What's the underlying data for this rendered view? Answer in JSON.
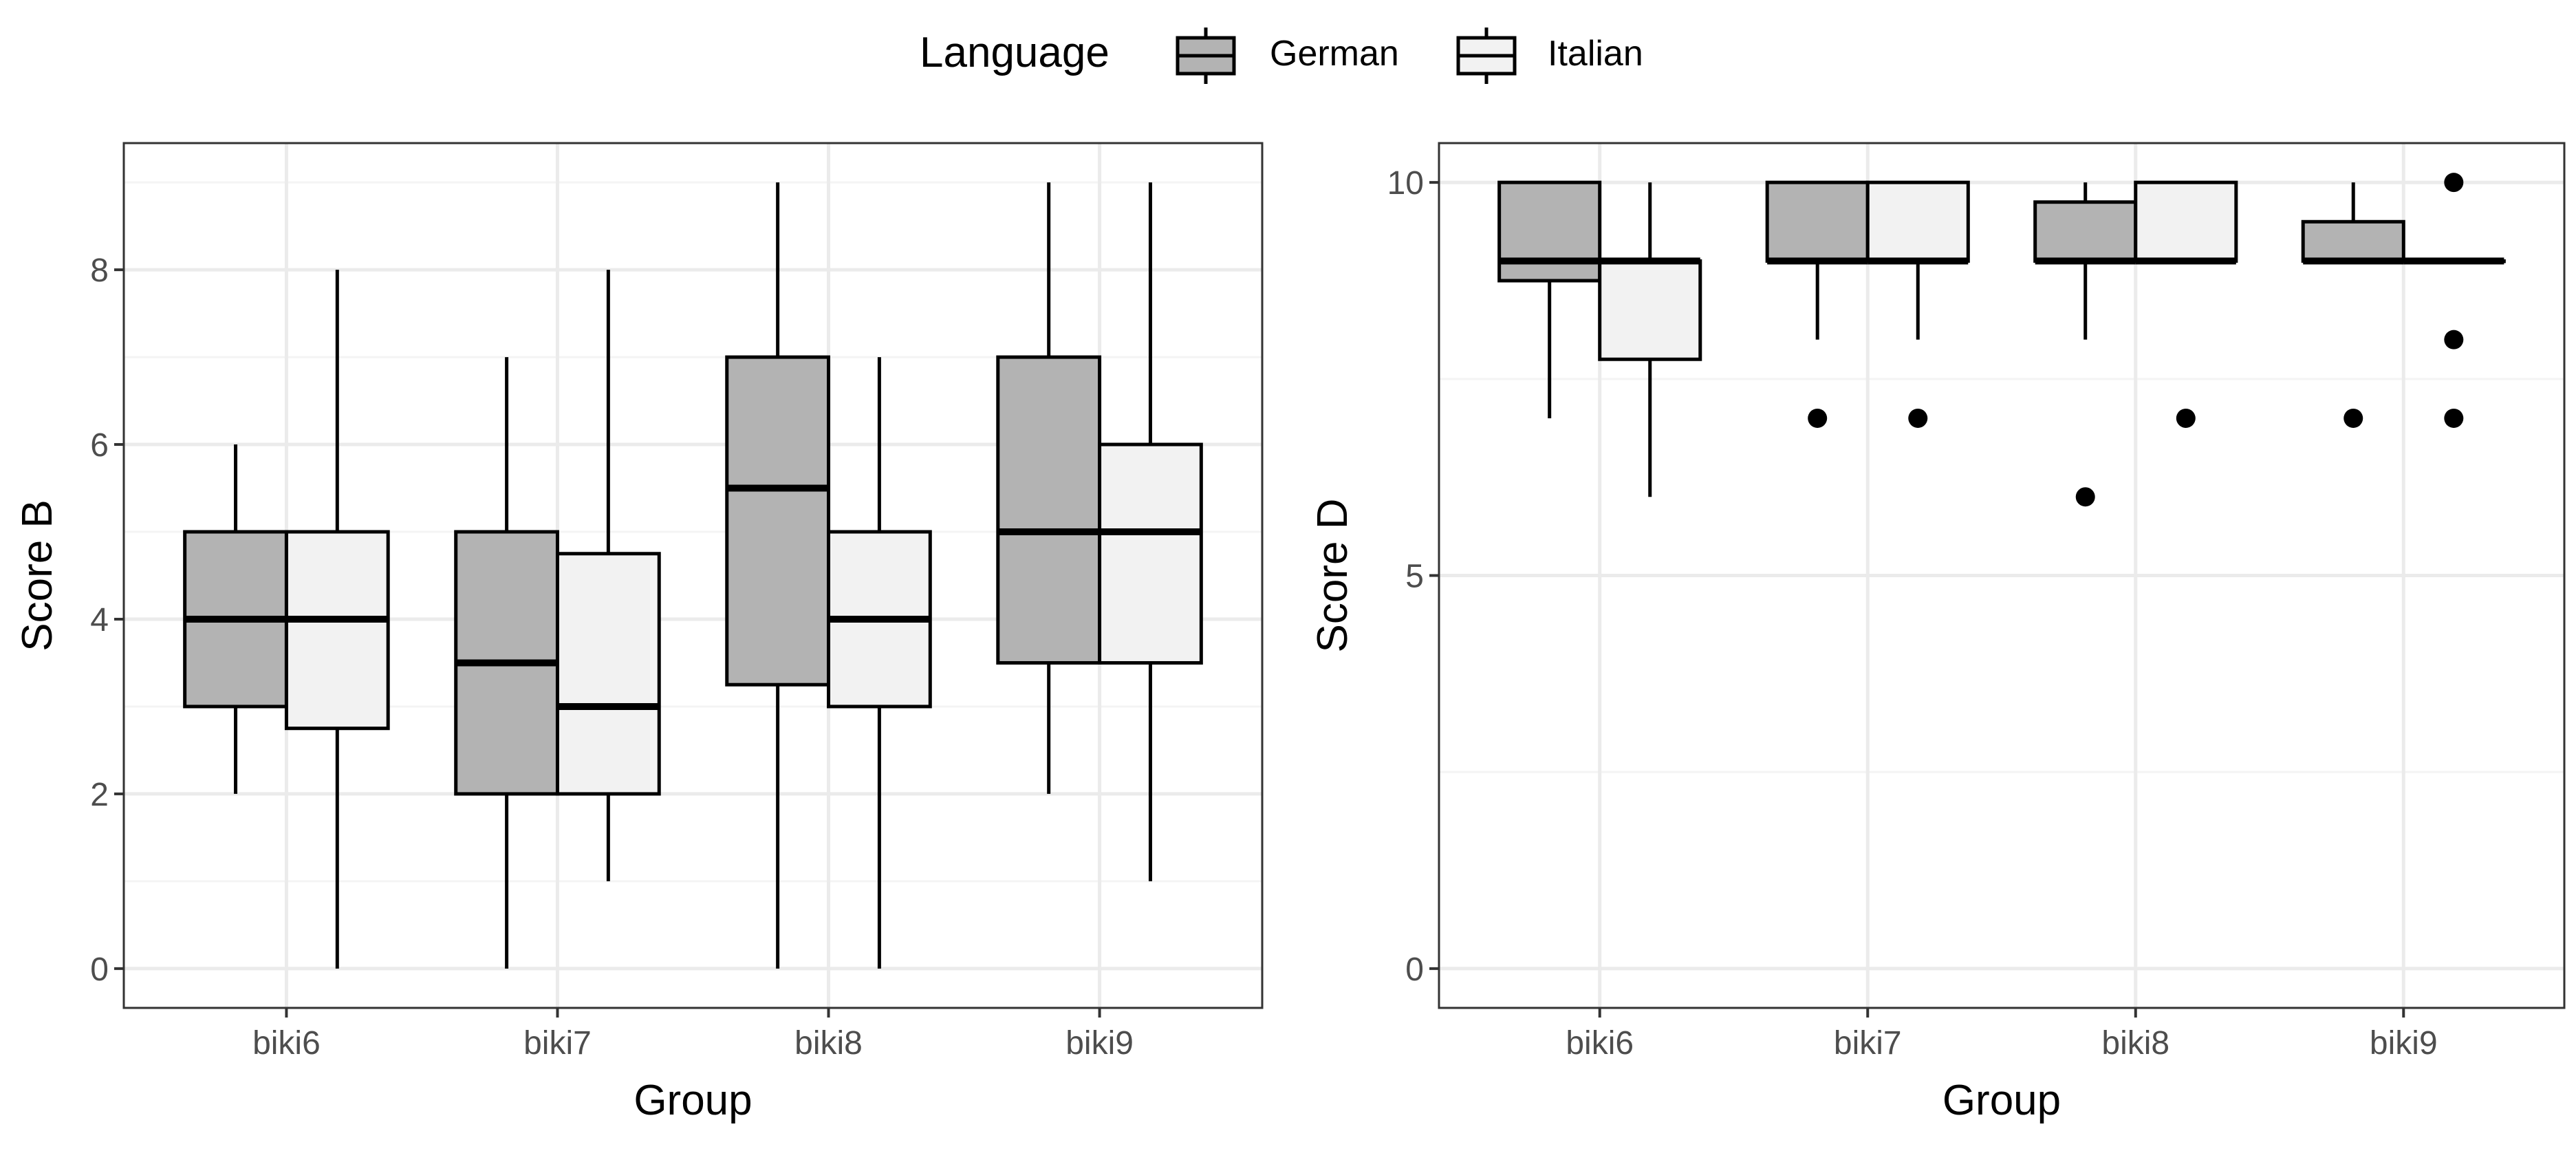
{
  "legend": {
    "title": "Language",
    "entries": [
      {
        "label": "German",
        "fill": "#b3b3b3"
      },
      {
        "label": "Italian",
        "fill": "#f2f2f2"
      }
    ]
  },
  "colors": {
    "panel_border": "#333333",
    "grid_major": "#ebebeb",
    "grid_minor": "#f4f4f4",
    "box_line": "#000000",
    "tick_text": "#4d4d4d"
  },
  "chart_data": [
    {
      "type": "boxplot",
      "title": "",
      "xlabel": "Group",
      "ylabel": "Score B",
      "categories": [
        "biki6",
        "biki7",
        "biki8",
        "biki9"
      ],
      "ylim": [
        -0.45,
        9.45
      ],
      "yticks": [
        0,
        2,
        4,
        6,
        8
      ],
      "yminor": [
        1,
        3,
        5,
        7,
        9
      ],
      "series": [
        {
          "name": "German",
          "boxes": [
            {
              "whisker_low": 2,
              "q1": 3,
              "median": 4,
              "q3": 5,
              "whisker_high": 6,
              "outliers": []
            },
            {
              "whisker_low": 0,
              "q1": 2,
              "median": 3.5,
              "q3": 5,
              "whisker_high": 7,
              "outliers": []
            },
            {
              "whisker_low": 0,
              "q1": 3.25,
              "median": 5.5,
              "q3": 7,
              "whisker_high": 9,
              "outliers": []
            },
            {
              "whisker_low": 2,
              "q1": 3.5,
              "median": 5,
              "q3": 7,
              "whisker_high": 9,
              "outliers": []
            }
          ]
        },
        {
          "name": "Italian",
          "boxes": [
            {
              "whisker_low": 0,
              "q1": 2.75,
              "median": 4,
              "q3": 5,
              "whisker_high": 8,
              "outliers": []
            },
            {
              "whisker_low": 1,
              "q1": 2,
              "median": 3,
              "q3": 4.75,
              "whisker_high": 8,
              "outliers": []
            },
            {
              "whisker_low": 0,
              "q1": 3,
              "median": 4,
              "q3": 5,
              "whisker_high": 7,
              "outliers": []
            },
            {
              "whisker_low": 1,
              "q1": 3.5,
              "median": 5,
              "q3": 6,
              "whisker_high": 9,
              "outliers": []
            }
          ]
        }
      ]
    },
    {
      "type": "boxplot",
      "title": "",
      "xlabel": "Group",
      "ylabel": "Score D",
      "categories": [
        "biki6",
        "biki7",
        "biki8",
        "biki9"
      ],
      "ylim": [
        -0.5,
        10.5
      ],
      "yticks": [
        0,
        5,
        10
      ],
      "yminor": [
        2.5,
        7.5
      ],
      "series": [
        {
          "name": "German",
          "boxes": [
            {
              "whisker_low": 7,
              "q1": 8.75,
              "median": 9,
              "q3": 10,
              "whisker_high": 10,
              "outliers": []
            },
            {
              "whisker_low": 8,
              "q1": 9,
              "median": 9,
              "q3": 10,
              "whisker_high": 10,
              "outliers": [
                7
              ]
            },
            {
              "whisker_low": 8,
              "q1": 9,
              "median": 9,
              "q3": 9.75,
              "whisker_high": 10,
              "outliers": [
                6
              ]
            },
            {
              "whisker_low": 9,
              "q1": 9,
              "median": 9,
              "q3": 9.5,
              "whisker_high": 10,
              "outliers": [
                7
              ]
            }
          ]
        },
        {
          "name": "Italian",
          "boxes": [
            {
              "whisker_low": 6,
              "q1": 7.75,
              "median": 9,
              "q3": 9,
              "whisker_high": 10,
              "outliers": []
            },
            {
              "whisker_low": 8,
              "q1": 9,
              "median": 9,
              "q3": 10,
              "whisker_high": 10,
              "outliers": [
                7
              ]
            },
            {
              "whisker_low": 9,
              "q1": 9,
              "median": 9,
              "q3": 10,
              "whisker_high": 10,
              "outliers": [
                7
              ]
            },
            {
              "whisker_low": 9,
              "q1": 9,
              "median": 9,
              "q3": 9,
              "whisker_high": 9,
              "outliers": [
                10,
                8,
                7
              ]
            }
          ]
        }
      ]
    }
  ]
}
